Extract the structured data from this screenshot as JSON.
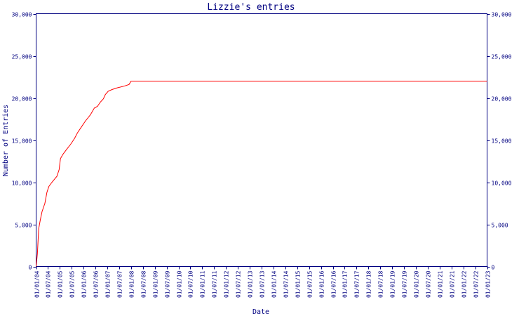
{
  "chart_data": {
    "type": "line",
    "title": "Lizzie's entries",
    "xlabel": "Date",
    "ylabel": "Number of Entries",
    "ylim": [
      0,
      30000
    ],
    "y_ticks": [
      0,
      5000,
      10000,
      15000,
      20000,
      25000,
      30000
    ],
    "y_tick_labels": [
      "0",
      "5,000",
      "10,000",
      "15,000",
      "20,000",
      "25,000",
      "30,000"
    ],
    "x_tick_labels": [
      "01/01/04",
      "01/07/04",
      "01/01/05",
      "01/07/05",
      "01/01/06",
      "01/07/06",
      "01/01/07",
      "01/07/07",
      "01/01/08",
      "01/07/08",
      "01/01/09",
      "01/07/09",
      "01/01/10",
      "01/07/10",
      "01/01/11",
      "01/07/11",
      "01/01/12",
      "01/07/12",
      "01/01/13",
      "01/07/13",
      "01/01/14",
      "01/07/14",
      "01/01/15",
      "01/07/15",
      "01/01/16",
      "01/07/16",
      "01/01/17",
      "01/07/17",
      "01/01/18",
      "01/07/18",
      "01/01/19",
      "01/07/19",
      "01/01/20",
      "01/07/20",
      "01/01/21",
      "01/07/21",
      "01/01/22",
      "01/07/22",
      "01/01/23"
    ],
    "xlim": [
      "2004-01-01",
      "2023-01-01"
    ],
    "grid": false,
    "legend": "none",
    "series": [
      {
        "color": "#ff0000",
        "points": [
          [
            "2004-01-01",
            0
          ],
          [
            "2004-01-20",
            1500
          ],
          [
            "2004-02-10",
            4500
          ],
          [
            "2004-03-05",
            5500
          ],
          [
            "2004-04-01",
            6500
          ],
          [
            "2004-05-15",
            7500
          ],
          [
            "2004-06-15",
            8800
          ],
          [
            "2004-07-15",
            9500
          ],
          [
            "2004-09-01",
            10000
          ],
          [
            "2004-11-15",
            10700
          ],
          [
            "2004-12-20",
            11500
          ],
          [
            "2005-01-10",
            12800
          ],
          [
            "2005-02-15",
            13300
          ],
          [
            "2005-04-15",
            13900
          ],
          [
            "2005-06-15",
            14500
          ],
          [
            "2005-08-15",
            15200
          ],
          [
            "2005-10-01",
            15900
          ],
          [
            "2005-12-01",
            16600
          ],
          [
            "2006-02-01",
            17300
          ],
          [
            "2006-04-15",
            18000
          ],
          [
            "2006-06-15",
            18800
          ],
          [
            "2006-08-01",
            19000
          ],
          [
            "2006-09-15",
            19500
          ],
          [
            "2006-11-01",
            19900
          ],
          [
            "2006-12-01",
            20400
          ],
          [
            "2007-01-15",
            20800
          ],
          [
            "2007-03-15",
            21000
          ],
          [
            "2007-06-01",
            21200
          ],
          [
            "2007-09-15",
            21400
          ],
          [
            "2007-12-01",
            21600
          ],
          [
            "2008-01-01",
            22000
          ],
          [
            "2023-01-01",
            22000
          ]
        ]
      }
    ]
  }
}
